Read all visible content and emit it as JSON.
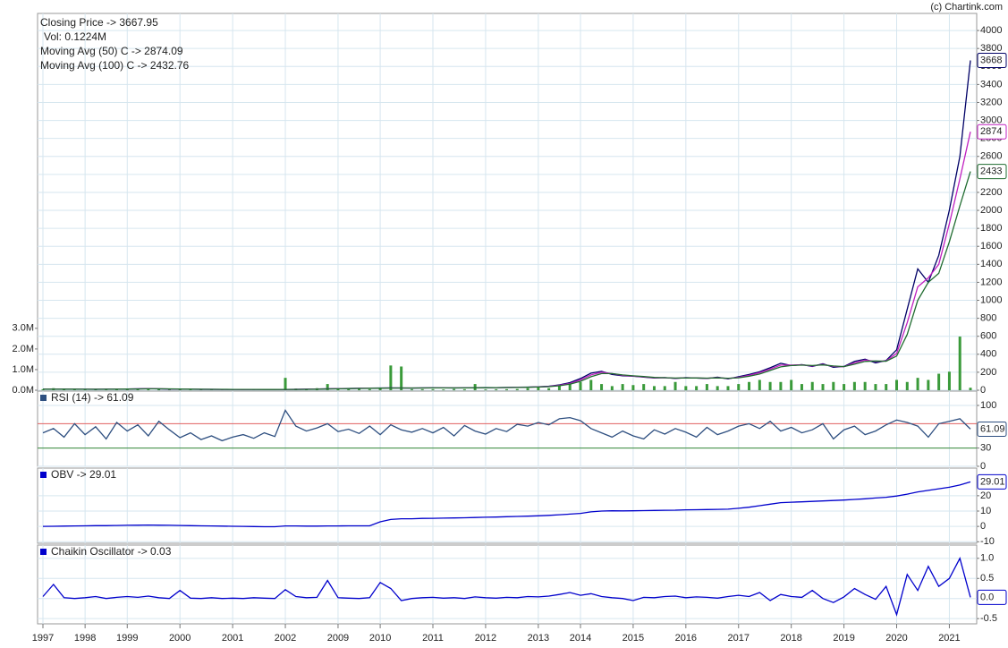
{
  "chart_data": {
    "type": "stock",
    "source": "(c) Chartink.com",
    "grid": true,
    "categories": [
      "1997",
      null,
      null,
      null,
      "1998",
      null,
      null,
      null,
      "1999",
      null,
      null,
      null,
      null,
      "2000",
      null,
      null,
      null,
      null,
      "2001",
      null,
      null,
      null,
      null,
      "2002",
      null,
      null,
      null,
      null,
      "2009",
      null,
      null,
      null,
      "2010",
      null,
      null,
      null,
      null,
      "2011",
      null,
      null,
      null,
      null,
      "2012",
      null,
      null,
      null,
      null,
      "2013",
      null,
      null,
      null,
      "2014",
      null,
      null,
      null,
      null,
      "2015",
      null,
      null,
      null,
      null,
      "2016",
      null,
      null,
      null,
      null,
      "2017",
      null,
      null,
      null,
      null,
      "2018",
      null,
      null,
      null,
      null,
      "2019",
      null,
      null,
      null,
      null,
      "2020",
      null,
      null,
      null,
      null,
      "2021",
      null,
      null
    ],
    "panels": [
      {
        "type": "line",
        "ylim": [
          0,
          4190
        ],
        "yticks": [
          0,
          200,
          400,
          600,
          800,
          1000,
          1200,
          1400,
          1600,
          1800,
          2000,
          2200,
          2400,
          2600,
          2800,
          3000,
          3200,
          3400,
          3600,
          3800,
          4000
        ],
        "y2lim": [
          0,
          18.26
        ],
        "y2ticks": [
          {
            "value": 0,
            "label": "0.0M"
          },
          {
            "value": 1,
            "label": "1.0M"
          },
          {
            "value": 2,
            "label": "2.0M"
          },
          {
            "value": 3,
            "label": "3.0M"
          }
        ],
        "series": [
          {
            "name": "Closing Price -> 3667.95",
            "color": "#000066",
            "badge": "3668",
            "values": [
              12,
              11,
              13,
              12,
              11,
              10,
              12,
              14,
              13,
              16,
              18,
              15,
              13,
              12,
              11,
              10,
              10,
              9,
              9,
              8,
              9,
              8,
              8,
              9,
              10,
              12,
              14,
              16,
              18,
              20,
              22,
              24,
              25,
              26,
              25,
              24,
              26,
              27,
              26,
              25,
              27,
              28,
              30,
              29,
              31,
              33,
              35,
              38,
              45,
              60,
              85,
              130,
              190,
              210,
              175,
              160,
              155,
              145,
              135,
              140,
              130,
              140,
              135,
              130,
              145,
              125,
              150,
              175,
              205,
              250,
              300,
              275,
              285,
              265,
              295,
              255,
              265,
              320,
              345,
              305,
              330,
              450,
              900,
              1350,
              1200,
              1500,
              2000,
              2600,
              3667.95
            ]
          },
          {
            "name": "Vol: 0.1224M",
            "type": "bar",
            "axis": "y2",
            "color": "#3a9a3a",
            "legend_color": "#000000",
            "values": [
              0.05,
              0.1,
              0.03,
              0.02,
              0.02,
              0.03,
              0.02,
              0.04,
              0.05,
              0.06,
              0.1,
              0.05,
              0.03,
              0.03,
              0.02,
              0.02,
              0.02,
              0.02,
              0.02,
              0.02,
              0.02,
              0.02,
              0.03,
              0.6,
              0.08,
              0.05,
              0.1,
              0.3,
              0.05,
              0.05,
              0.06,
              0.05,
              0.1,
              1.2,
              1.15,
              0.05,
              0.05,
              0.05,
              0.04,
              0.06,
              0.05,
              0.3,
              0.04,
              0.05,
              0.05,
              0.06,
              0.1,
              0.15,
              0.1,
              0.2,
              0.3,
              0.4,
              0.5,
              0.3,
              0.2,
              0.3,
              0.25,
              0.3,
              0.2,
              0.2,
              0.4,
              0.2,
              0.2,
              0.3,
              0.2,
              0.2,
              0.3,
              0.4,
              0.5,
              0.4,
              0.4,
              0.5,
              0.3,
              0.4,
              0.3,
              0.4,
              0.3,
              0.4,
              0.4,
              0.3,
              0.3,
              0.5,
              0.4,
              0.6,
              0.5,
              0.8,
              0.9,
              2.6,
              0.1224
            ]
          },
          {
            "name": "Moving Avg (50) C -> 2874.09",
            "color": "#c020c0",
            "badge": "2874",
            "values": [
              12,
              12,
              12,
              12,
              11,
              11,
              11,
              13,
              13,
              15,
              17,
              16,
              14,
              12,
              11,
              10,
              10,
              9,
              9,
              8,
              9,
              8,
              8,
              9,
              10,
              11,
              13,
              15,
              17,
              19,
              21,
              23,
              24,
              25,
              25,
              25,
              25,
              26,
              26,
              26,
              26,
              27,
              29,
              29,
              30,
              32,
              34,
              37,
              42,
              55,
              75,
              115,
              170,
              200,
              185,
              165,
              157,
              148,
              138,
              139,
              133,
              137,
              136,
              132,
              140,
              130,
              142,
              165,
              195,
              235,
              280,
              280,
              282,
              270,
              288,
              265,
              262,
              305,
              335,
              320,
              325,
              410,
              750,
              1150,
              1250,
              1400,
              1850,
              2350,
              2874.09
            ]
          },
          {
            "name": "Moving Avg (100) C -> 2432.76",
            "color": "#1f6b2f",
            "badge": "2433",
            "values": [
              12,
              12,
              12,
              12,
              11,
              11,
              11,
              12,
              13,
              14,
              16,
              16,
              15,
              13,
              12,
              11,
              10,
              10,
              9,
              9,
              9,
              8,
              8,
              9,
              9,
              10,
              12,
              14,
              16,
              18,
              20,
              22,
              23,
              24,
              25,
              25,
              25,
              26,
              26,
              26,
              26,
              27,
              28,
              29,
              30,
              31,
              33,
              36,
              40,
              50,
              68,
              100,
              150,
              185,
              185,
              170,
              160,
              152,
              142,
              139,
              135,
              136,
              136,
              134,
              137,
              133,
              138,
              155,
              180,
              220,
              260,
              275,
              280,
              275,
              282,
              270,
              263,
              290,
              320,
              325,
              322,
              380,
              620,
              1000,
              1200,
              1300,
              1650,
              2050,
              2432.76
            ]
          }
        ]
      },
      {
        "type": "line",
        "ylim": [
          0,
          123.5
        ],
        "yticks": [
          0,
          30,
          100
        ],
        "levels": [
          {
            "value": 70,
            "color": "#e06060"
          },
          {
            "value": 30,
            "color": "#3a8a3a"
          }
        ],
        "series": [
          {
            "name": "RSI (14) -> 61.09",
            "color": "#2e4f80",
            "badge": "61.09",
            "values": [
              55,
              62,
              48,
              70,
              52,
              65,
              45,
              72,
              58,
              68,
              50,
              74,
              60,
              47,
              55,
              44,
              50,
              42,
              48,
              52,
              46,
              55,
              49,
              92,
              66,
              58,
              63,
              70,
              57,
              61,
              54,
              66,
              52,
              68,
              60,
              56,
              62,
              55,
              64,
              50,
              67,
              58,
              53,
              62,
              57,
              69,
              66,
              72,
              68,
              78,
              80,
              75,
              62,
              55,
              48,
              58,
              50,
              45,
              60,
              53,
              62,
              56,
              48,
              64,
              52,
              58,
              66,
              70,
              62,
              74,
              58,
              64,
              55,
              60,
              70,
              45,
              60,
              66,
              52,
              58,
              68,
              76,
              72,
              66,
              48,
              70,
              74,
              78,
              61.09
            ]
          }
        ]
      },
      {
        "type": "line",
        "ylim": [
          -11,
          38
        ],
        "yticks": [
          -10,
          0,
          10,
          20
        ],
        "series": [
          {
            "name": "OBV -> 29.01",
            "color": "#0000cc",
            "badge": "29.01",
            "values": [
              0,
              0.1,
              0.2,
              0.3,
              0.4,
              0.5,
              0.5,
              0.6,
              0.7,
              0.8,
              0.9,
              0.8,
              0.7,
              0.6,
              0.5,
              0.4,
              0.3,
              0.2,
              0.1,
              0,
              -0.1,
              -0.2,
              -0.2,
              0.3,
              0.3,
              0.2,
              0.2,
              0.3,
              0.3,
              0.4,
              0.4,
              0.4,
              3,
              4.5,
              5,
              5,
              5.2,
              5.3,
              5.4,
              5.5,
              5.6,
              5.8,
              6,
              6.1,
              6.3,
              6.5,
              6.7,
              6.9,
              7.2,
              7.6,
              8,
              8.5,
              9.5,
              10,
              10.2,
              10.1,
              10.2,
              10.3,
              10.4,
              10.5,
              10.6,
              10.8,
              10.9,
              11,
              11.1,
              11.2,
              11.8,
              12.5,
              13.5,
              14.5,
              15.5,
              15.8,
              16,
              16.3,
              16.6,
              16.9,
              17.2,
              17.6,
              18,
              18.5,
              19,
              19.8,
              21,
              22.5,
              23.5,
              24.5,
              25.5,
              27,
              29.01
            ]
          }
        ]
      },
      {
        "type": "line",
        "ylim": [
          -0.63,
          1.33
        ],
        "yticks": [
          {
            "value": -0.5,
            "label": "-0.5"
          },
          {
            "value": 0,
            "label": "0.0"
          },
          {
            "value": 0.5,
            "label": "0.5"
          },
          {
            "value": 1,
            "label": "1.0"
          }
        ],
        "series": [
          {
            "name": "Chaikin Oscillator -> 0.03",
            "color": "#0000cc",
            "badge": "0.0",
            "values": [
              0.05,
              0.35,
              0.02,
              0,
              0.02,
              0.05,
              0,
              0.03,
              0.05,
              0.03,
              0.06,
              0.02,
              0,
              0.2,
              0.01,
              0,
              0.02,
              0,
              0.01,
              0,
              0.02,
              0.01,
              0,
              0.22,
              0.05,
              0.02,
              0.03,
              0.45,
              0.02,
              0.01,
              0,
              0.02,
              0.4,
              0.25,
              -0.05,
              0,
              0.02,
              0.03,
              0.01,
              0.02,
              0,
              0.04,
              0.02,
              0.01,
              0.03,
              0.02,
              0.05,
              0.04,
              0.06,
              0.1,
              0.15,
              0.08,
              0.12,
              0.05,
              0.02,
              0,
              -0.05,
              0.03,
              0.02,
              0.05,
              0.06,
              0.02,
              0.04,
              0.03,
              0.01,
              0.05,
              0.08,
              0.05,
              0.15,
              -0.05,
              0.1,
              0.05,
              0.03,
              0.2,
              0,
              -0.1,
              0.04,
              0.25,
              0.1,
              -0.02,
              0.3,
              -0.4,
              0.6,
              0.2,
              0.8,
              0.3,
              0.5,
              1.0,
              0.03
            ]
          }
        ]
      }
    ]
  }
}
